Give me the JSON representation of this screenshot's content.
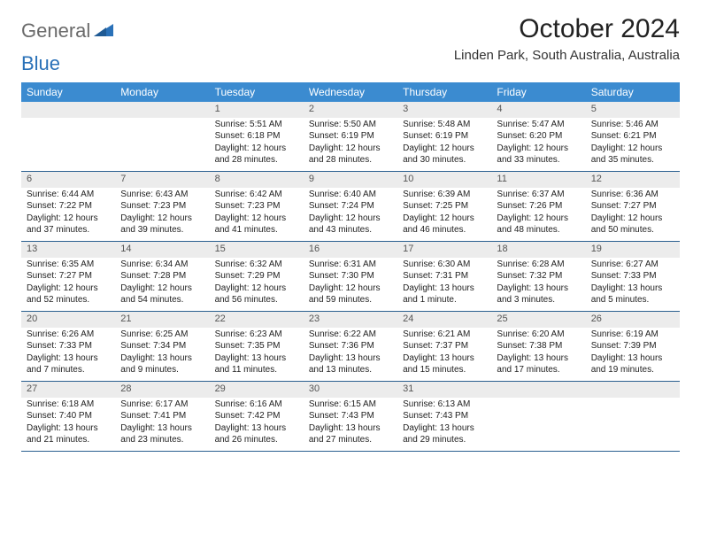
{
  "logo": {
    "general": "General",
    "blue": "Blue"
  },
  "title": "October 2024",
  "location": "Linden Park, South Australia, Australia",
  "colors": {
    "header_bg": "#3b8bd0",
    "header_text": "#ffffff",
    "daynum_bg": "#ececec",
    "week_border": "#2a5f8f",
    "logo_gray": "#6a6a6a",
    "logo_blue": "#2a71b8"
  },
  "weekdays": [
    "Sunday",
    "Monday",
    "Tuesday",
    "Wednesday",
    "Thursday",
    "Friday",
    "Saturday"
  ],
  "weeks": [
    [
      {
        "empty": true
      },
      {
        "empty": true
      },
      {
        "num": "1",
        "sunrise": "Sunrise: 5:51 AM",
        "sunset": "Sunset: 6:18 PM",
        "dl1": "Daylight: 12 hours",
        "dl2": "and 28 minutes."
      },
      {
        "num": "2",
        "sunrise": "Sunrise: 5:50 AM",
        "sunset": "Sunset: 6:19 PM",
        "dl1": "Daylight: 12 hours",
        "dl2": "and 28 minutes."
      },
      {
        "num": "3",
        "sunrise": "Sunrise: 5:48 AM",
        "sunset": "Sunset: 6:19 PM",
        "dl1": "Daylight: 12 hours",
        "dl2": "and 30 minutes."
      },
      {
        "num": "4",
        "sunrise": "Sunrise: 5:47 AM",
        "sunset": "Sunset: 6:20 PM",
        "dl1": "Daylight: 12 hours",
        "dl2": "and 33 minutes."
      },
      {
        "num": "5",
        "sunrise": "Sunrise: 5:46 AM",
        "sunset": "Sunset: 6:21 PM",
        "dl1": "Daylight: 12 hours",
        "dl2": "and 35 minutes."
      }
    ],
    [
      {
        "num": "6",
        "sunrise": "Sunrise: 6:44 AM",
        "sunset": "Sunset: 7:22 PM",
        "dl1": "Daylight: 12 hours",
        "dl2": "and 37 minutes."
      },
      {
        "num": "7",
        "sunrise": "Sunrise: 6:43 AM",
        "sunset": "Sunset: 7:23 PM",
        "dl1": "Daylight: 12 hours",
        "dl2": "and 39 minutes."
      },
      {
        "num": "8",
        "sunrise": "Sunrise: 6:42 AM",
        "sunset": "Sunset: 7:23 PM",
        "dl1": "Daylight: 12 hours",
        "dl2": "and 41 minutes."
      },
      {
        "num": "9",
        "sunrise": "Sunrise: 6:40 AM",
        "sunset": "Sunset: 7:24 PM",
        "dl1": "Daylight: 12 hours",
        "dl2": "and 43 minutes."
      },
      {
        "num": "10",
        "sunrise": "Sunrise: 6:39 AM",
        "sunset": "Sunset: 7:25 PM",
        "dl1": "Daylight: 12 hours",
        "dl2": "and 46 minutes."
      },
      {
        "num": "11",
        "sunrise": "Sunrise: 6:37 AM",
        "sunset": "Sunset: 7:26 PM",
        "dl1": "Daylight: 12 hours",
        "dl2": "and 48 minutes."
      },
      {
        "num": "12",
        "sunrise": "Sunrise: 6:36 AM",
        "sunset": "Sunset: 7:27 PM",
        "dl1": "Daylight: 12 hours",
        "dl2": "and 50 minutes."
      }
    ],
    [
      {
        "num": "13",
        "sunrise": "Sunrise: 6:35 AM",
        "sunset": "Sunset: 7:27 PM",
        "dl1": "Daylight: 12 hours",
        "dl2": "and 52 minutes."
      },
      {
        "num": "14",
        "sunrise": "Sunrise: 6:34 AM",
        "sunset": "Sunset: 7:28 PM",
        "dl1": "Daylight: 12 hours",
        "dl2": "and 54 minutes."
      },
      {
        "num": "15",
        "sunrise": "Sunrise: 6:32 AM",
        "sunset": "Sunset: 7:29 PM",
        "dl1": "Daylight: 12 hours",
        "dl2": "and 56 minutes."
      },
      {
        "num": "16",
        "sunrise": "Sunrise: 6:31 AM",
        "sunset": "Sunset: 7:30 PM",
        "dl1": "Daylight: 12 hours",
        "dl2": "and 59 minutes."
      },
      {
        "num": "17",
        "sunrise": "Sunrise: 6:30 AM",
        "sunset": "Sunset: 7:31 PM",
        "dl1": "Daylight: 13 hours",
        "dl2": "and 1 minute."
      },
      {
        "num": "18",
        "sunrise": "Sunrise: 6:28 AM",
        "sunset": "Sunset: 7:32 PM",
        "dl1": "Daylight: 13 hours",
        "dl2": "and 3 minutes."
      },
      {
        "num": "19",
        "sunrise": "Sunrise: 6:27 AM",
        "sunset": "Sunset: 7:33 PM",
        "dl1": "Daylight: 13 hours",
        "dl2": "and 5 minutes."
      }
    ],
    [
      {
        "num": "20",
        "sunrise": "Sunrise: 6:26 AM",
        "sunset": "Sunset: 7:33 PM",
        "dl1": "Daylight: 13 hours",
        "dl2": "and 7 minutes."
      },
      {
        "num": "21",
        "sunrise": "Sunrise: 6:25 AM",
        "sunset": "Sunset: 7:34 PM",
        "dl1": "Daylight: 13 hours",
        "dl2": "and 9 minutes."
      },
      {
        "num": "22",
        "sunrise": "Sunrise: 6:23 AM",
        "sunset": "Sunset: 7:35 PM",
        "dl1": "Daylight: 13 hours",
        "dl2": "and 11 minutes."
      },
      {
        "num": "23",
        "sunrise": "Sunrise: 6:22 AM",
        "sunset": "Sunset: 7:36 PM",
        "dl1": "Daylight: 13 hours",
        "dl2": "and 13 minutes."
      },
      {
        "num": "24",
        "sunrise": "Sunrise: 6:21 AM",
        "sunset": "Sunset: 7:37 PM",
        "dl1": "Daylight: 13 hours",
        "dl2": "and 15 minutes."
      },
      {
        "num": "25",
        "sunrise": "Sunrise: 6:20 AM",
        "sunset": "Sunset: 7:38 PM",
        "dl1": "Daylight: 13 hours",
        "dl2": "and 17 minutes."
      },
      {
        "num": "26",
        "sunrise": "Sunrise: 6:19 AM",
        "sunset": "Sunset: 7:39 PM",
        "dl1": "Daylight: 13 hours",
        "dl2": "and 19 minutes."
      }
    ],
    [
      {
        "num": "27",
        "sunrise": "Sunrise: 6:18 AM",
        "sunset": "Sunset: 7:40 PM",
        "dl1": "Daylight: 13 hours",
        "dl2": "and 21 minutes."
      },
      {
        "num": "28",
        "sunrise": "Sunrise: 6:17 AM",
        "sunset": "Sunset: 7:41 PM",
        "dl1": "Daylight: 13 hours",
        "dl2": "and 23 minutes."
      },
      {
        "num": "29",
        "sunrise": "Sunrise: 6:16 AM",
        "sunset": "Sunset: 7:42 PM",
        "dl1": "Daylight: 13 hours",
        "dl2": "and 26 minutes."
      },
      {
        "num": "30",
        "sunrise": "Sunrise: 6:15 AM",
        "sunset": "Sunset: 7:43 PM",
        "dl1": "Daylight: 13 hours",
        "dl2": "and 27 minutes."
      },
      {
        "num": "31",
        "sunrise": "Sunrise: 6:13 AM",
        "sunset": "Sunset: 7:43 PM",
        "dl1": "Daylight: 13 hours",
        "dl2": "and 29 minutes."
      },
      {
        "empty": true
      },
      {
        "empty": true
      }
    ]
  ]
}
